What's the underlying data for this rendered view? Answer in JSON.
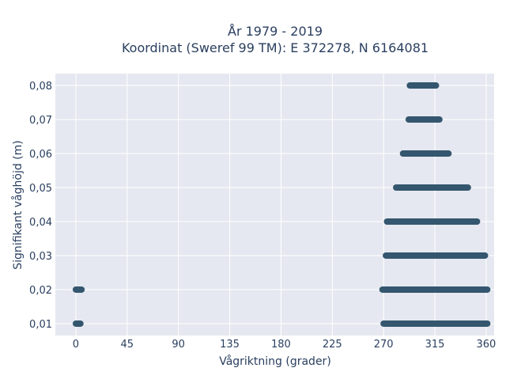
{
  "chart_data": {
    "type": "scatter",
    "title_line1": "År 1979 - 2019",
    "title_line2": "Koordinat (Sweref 99 TM): E 372278, N 6164081",
    "xlabel": "Vågriktning (grader)",
    "ylabel": "Signifikant våghöjd (m)",
    "xlim": [
      -18,
      367
    ],
    "ylim": [
      0.0065,
      0.0835
    ],
    "x_ticks": [
      0,
      45,
      90,
      135,
      180,
      225,
      270,
      315,
      360
    ],
    "x_tick_labels": [
      "0",
      "45",
      "90",
      "135",
      "180",
      "225",
      "270",
      "315",
      "360"
    ],
    "y_ticks": [
      0.01,
      0.02,
      0.03,
      0.04,
      0.05,
      0.06,
      0.07,
      0.08
    ],
    "y_tick_labels": [
      "0,01",
      "0,02",
      "0,03",
      "0,04",
      "0,05",
      "0,06",
      "0,07",
      "0,08"
    ],
    "grid": true,
    "marker_color": "#34566e",
    "plot_bg": "#e5e8f0",
    "text_color": "#2a3f5f",
    "point_bands": [
      {
        "y": 0.08,
        "x_min": 293,
        "x_max": 316
      },
      {
        "y": 0.07,
        "x_min": 292,
        "x_max": 319
      },
      {
        "y": 0.06,
        "x_min": 287,
        "x_max": 327
      },
      {
        "y": 0.05,
        "x_min": 281,
        "x_max": 344
      },
      {
        "y": 0.04,
        "x_min": 273,
        "x_max": 352
      },
      {
        "y": 0.03,
        "x_min": 272,
        "x_max": 359
      },
      {
        "y": 0.02,
        "x_min": 269,
        "x_max": 361
      },
      {
        "y": 0.02,
        "x_min": 0,
        "x_max": 5
      },
      {
        "y": 0.01,
        "x_min": 270,
        "x_max": 361
      },
      {
        "y": 0.01,
        "x_min": 0,
        "x_max": 4
      }
    ]
  }
}
